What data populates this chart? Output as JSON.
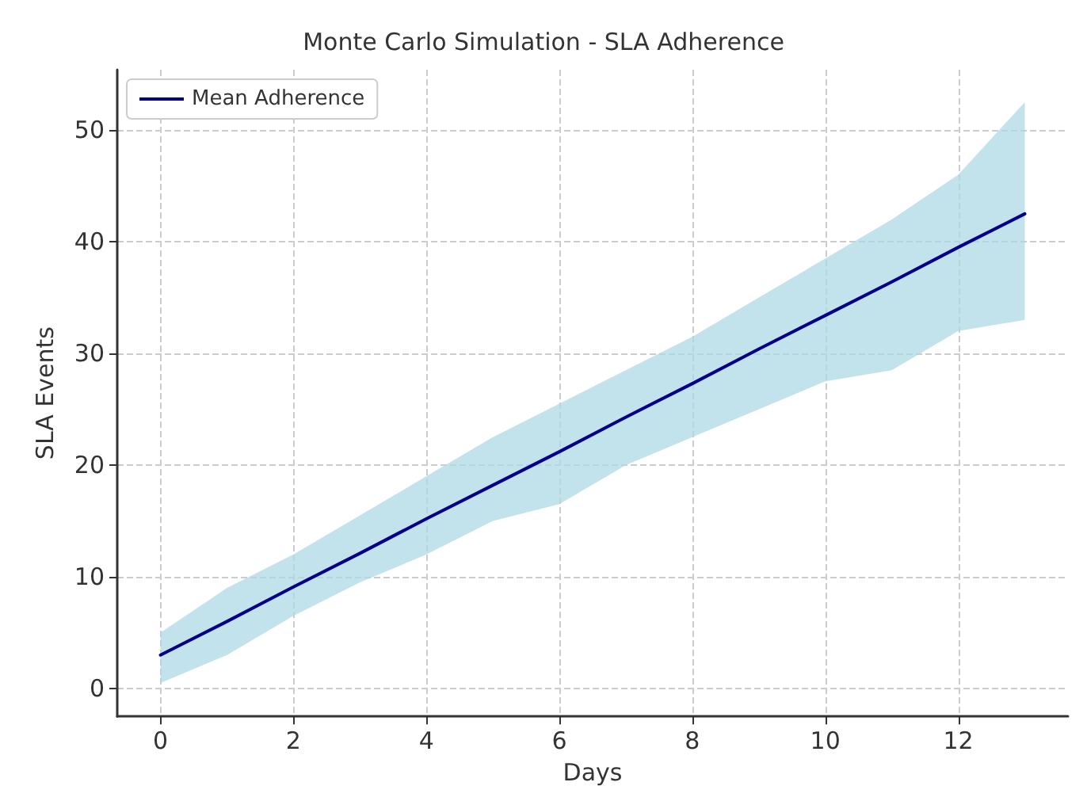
{
  "chart_data": {
    "type": "line",
    "title": "Monte Carlo Simulation - SLA Adherence",
    "xlabel": "Days",
    "ylabel": "SLA Events",
    "x": [
      0,
      1,
      2,
      3,
      4,
      5,
      6,
      7,
      8,
      9,
      10,
      11,
      12,
      13
    ],
    "series": [
      {
        "name": "Mean Adherence",
        "color": "#00008b",
        "values": [
          3,
          6.0,
          9.1,
          12.1,
          15.2,
          18.2,
          21.2,
          24.3,
          27.3,
          30.4,
          33.4,
          36.4,
          39.5,
          42.5
        ],
        "lower": [
          0.5,
          3,
          6.5,
          9.5,
          12,
          15,
          16.5,
          20,
          22.5,
          25,
          27.5,
          28.5,
          32,
          33
        ],
        "upper": [
          5,
          9,
          12,
          15.5,
          19,
          22.5,
          25.5,
          28.5,
          31.5,
          35,
          38.5,
          42,
          46,
          52.5
        ]
      }
    ],
    "xlim": [
      -0.65,
      13.65
    ],
    "xticks": [
      0,
      2,
      4,
      6,
      8,
      10,
      12
    ],
    "ylim": [
      -2.5,
      55.4
    ],
    "yticks": [
      0,
      10,
      20,
      30,
      40,
      50
    ],
    "grid": true,
    "legend": "top left",
    "marker": "none",
    "line_style": "solid"
  }
}
